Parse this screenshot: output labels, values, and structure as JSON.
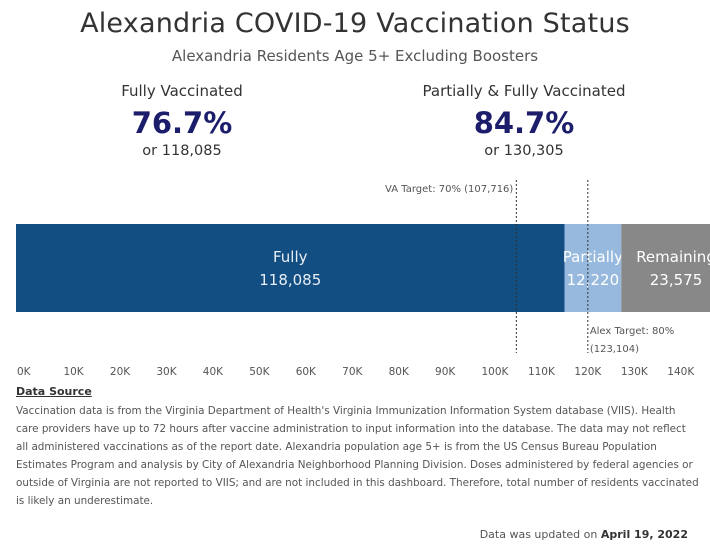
{
  "header": {
    "title": "Alexandria COVID-19 Vaccination Status",
    "subtitle": "Alexandria Residents Age 5+ Excluding Boosters"
  },
  "kpis": {
    "fully": {
      "label": "Fully Vaccinated",
      "percent": "76.7%",
      "count_text": "or 118,085"
    },
    "partial": {
      "label": "Partially & Fully Vaccinated",
      "percent": "84.7%",
      "count_text": "or 130,305"
    }
  },
  "chart_data": {
    "type": "bar",
    "orientation": "horizontal-stacked",
    "segments": [
      {
        "name": "Fully",
        "value": 118085,
        "value_label": "118,085",
        "color": "#124e82",
        "text_color": "#e8eef5"
      },
      {
        "name": "Partially",
        "value": 12220,
        "value_label": "12,220",
        "color": "#97b9dd",
        "text_color": "#ffffff"
      },
      {
        "name": "Remaining",
        "value": 23575,
        "value_label": "23,575",
        "color": "#888888",
        "text_color": "#ffffff"
      }
    ],
    "xlim": [
      0,
      145000
    ],
    "ticks": [
      {
        "value": 0,
        "label": "0K"
      },
      {
        "value": 10000,
        "label": "10K"
      },
      {
        "value": 20000,
        "label": "20K"
      },
      {
        "value": 30000,
        "label": "30K"
      },
      {
        "value": 40000,
        "label": "40K"
      },
      {
        "value": 50000,
        "label": "50K"
      },
      {
        "value": 60000,
        "label": "60K"
      },
      {
        "value": 70000,
        "label": "70K"
      },
      {
        "value": 80000,
        "label": "80K"
      },
      {
        "value": 90000,
        "label": "90K"
      },
      {
        "value": 100000,
        "label": "100K"
      },
      {
        "value": 110000,
        "label": "110K"
      },
      {
        "value": 120000,
        "label": "120K"
      },
      {
        "value": 130000,
        "label": "130K"
      },
      {
        "value": 140000,
        "label": "140K"
      }
    ],
    "reference_lines": [
      {
        "name": "VA Target",
        "value": 107716,
        "label_lines": [
          "VA Target: 70% (107,716)"
        ],
        "label_position": "above"
      },
      {
        "name": "Alex Target",
        "value": 123104,
        "label_lines": [
          "Alex Target: 80%",
          "(123,104)"
        ],
        "label_position": "below"
      }
    ],
    "grid": false,
    "legend": "none"
  },
  "source": {
    "title": "Data Source",
    "body": "Vaccination data is from the Virginia Department of Health's Virginia Immunization Information System database (VIIS). Health care providers have up to 72 hours after vaccine administration to input information into the database. The data may not reflect all administered vaccinations as of the report date. Alexandria population age 5+ is from the US Census Bureau Population Estimates Program and analysis by City of Alexandria Neighborhood Planning Division. Doses administered by federal agencies or outside of Virginia are not reported to VIIS; and are not included in this dashboard. Therefore, total number of residents vaccinated is likely an underestimate."
  },
  "footer": {
    "updated_prefix": "Data was updated on ",
    "updated_date": "April 19, 2022"
  }
}
